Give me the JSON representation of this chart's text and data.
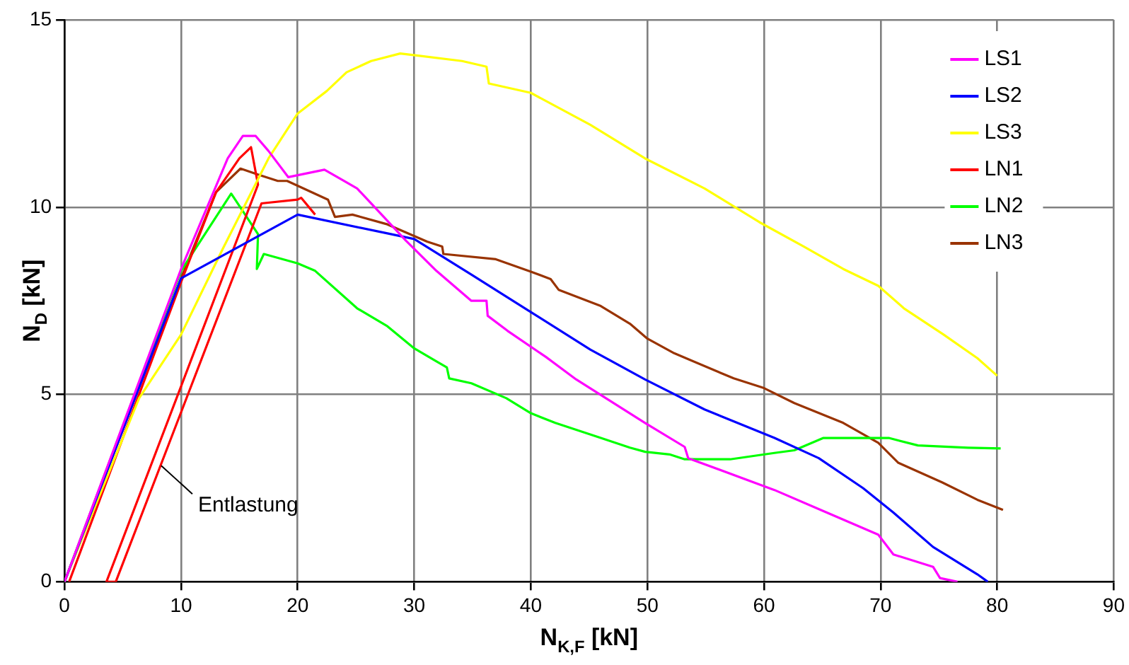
{
  "chart_data": {
    "type": "line",
    "xlabel": "N$_{K,F}$ [kN]",
    "ylabel": "N$_{D}$ [kN]",
    "xlim": [
      0,
      90
    ],
    "xticks": [
      0,
      10,
      20,
      30,
      40,
      50,
      60,
      70,
      80,
      90
    ],
    "ylim": [
      0,
      15
    ],
    "yticks": [
      0,
      5,
      10,
      15
    ],
    "grid": true,
    "legend": "top right",
    "marker": "none",
    "line_style": "solid",
    "annotations": [
      {
        "text": "Entlastung",
        "x": 8.3,
        "y": 3.1
      }
    ],
    "series": [
      {
        "name": "LS1",
        "color": "#ff00ff",
        "x": [
          0,
          10,
          14,
          15.3,
          16.4,
          17.5,
          19.2,
          22.3,
          25.1,
          26,
          29.3,
          31.9,
          34.9,
          36.2,
          36.3,
          38,
          41.3,
          43.9,
          49.8,
          53.2,
          53.5,
          60.9,
          65,
          69.8,
          71.1,
          74.5,
          75.1,
          76.6
        ],
        "values": [
          0,
          8.35,
          11.3,
          11.9,
          11.9,
          11.5,
          10.8,
          11,
          10.5,
          10.2,
          9.1,
          8.3,
          7.5,
          7.5,
          7.1,
          6.7,
          6,
          5.4,
          4.24,
          3.6,
          3.3,
          2.45,
          1.9,
          1.26,
          0.73,
          0.4,
          0.1,
          0
        ]
      },
      {
        "name": "LS2",
        "color": "#0000ff",
        "x": [
          0,
          10,
          20,
          27.7,
          30,
          34.9,
          40,
          45.1,
          49.8,
          54.9,
          60.9,
          64.7,
          68.5,
          71.1,
          74.5,
          78.3,
          79.2
        ],
        "values": [
          0,
          8.1,
          9.8,
          9.3,
          9.15,
          8.2,
          7.2,
          6.2,
          5.4,
          4.6,
          3.84,
          3.3,
          2.5,
          1.85,
          0.93,
          0.2,
          0
        ]
      },
      {
        "name": "LS3",
        "color": "#ffff00",
        "x": [
          0,
          6.4,
          10,
          13.6,
          17.5,
          20,
          22.5,
          24.2,
          26.3,
          28.8,
          30.2,
          34.1,
          36.2,
          36.4,
          40,
          45.1,
          49.8,
          54.9,
          59.6,
          63.4,
          66.8,
          69.8,
          72,
          75.4,
          78.3,
          80
        ],
        "values": [
          0,
          4.9,
          6.6,
          8.9,
          11.3,
          12.5,
          13.1,
          13.6,
          13.9,
          14.1,
          14.05,
          13.9,
          13.75,
          13.3,
          13.05,
          12.2,
          11.3,
          10.5,
          9.6,
          8.95,
          8.35,
          7.9,
          7.3,
          6.6,
          5.97,
          5.5
        ]
      },
      {
        "name": "LN1",
        "color": "#ff0000",
        "x": [
          0.4,
          10,
          13,
          15,
          16,
          16.6,
          3.6,
          4.4,
          16.9,
          20,
          20.3,
          21.5
        ],
        "values": [
          0,
          8,
          10.4,
          11.3,
          11.6,
          10.6,
          0,
          0,
          10.1,
          10.2,
          10.25,
          9.8
        ]
      },
      {
        "name": "LN2",
        "color": "#00ff00",
        "x": [
          0,
          10,
          14.3,
          16.6,
          16.5,
          17.1,
          20,
          21.5,
          25.1,
          27.7,
          30,
          32.8,
          33,
          34.9,
          37.9,
          40,
          42.1,
          46,
          48.5,
          49.8,
          51.9,
          53.2,
          57.1,
          60.9,
          62.6,
          65.1,
          68.9,
          70.7,
          73.2,
          77.5,
          80.3
        ],
        "values": [
          0,
          8.3,
          10.36,
          9.28,
          8.35,
          8.75,
          8.5,
          8.3,
          7.3,
          6.82,
          6.23,
          5.72,
          5.43,
          5.3,
          4.9,
          4.5,
          4.24,
          3.84,
          3.58,
          3.47,
          3.4,
          3.27,
          3.27,
          3.44,
          3.51,
          3.84,
          3.84,
          3.84,
          3.64,
          3.58,
          3.56
        ]
      },
      {
        "name": "LN3",
        "color": "#993300",
        "x": [
          0,
          10,
          13,
          15.1,
          16.6,
          18.3,
          19.1,
          22.6,
          23.2,
          24.7,
          27.7,
          31.1,
          32.4,
          32.5,
          37,
          40,
          41.7,
          42.4,
          46,
          48.5,
          50,
          52.3,
          57.4,
          60,
          62.6,
          66.8,
          69.8,
          71.5,
          75.3,
          78.3,
          80.5
        ],
        "values": [
          0,
          8.1,
          10.4,
          11.03,
          10.87,
          10.7,
          10.7,
          10.2,
          9.74,
          9.8,
          9.54,
          9.08,
          8.95,
          8.75,
          8.61,
          8.28,
          8.08,
          7.79,
          7.36,
          6.89,
          6.49,
          6.1,
          5.43,
          5.17,
          4.77,
          4.24,
          3.71,
          3.18,
          2.65,
          2.19,
          1.92
        ]
      }
    ]
  }
}
